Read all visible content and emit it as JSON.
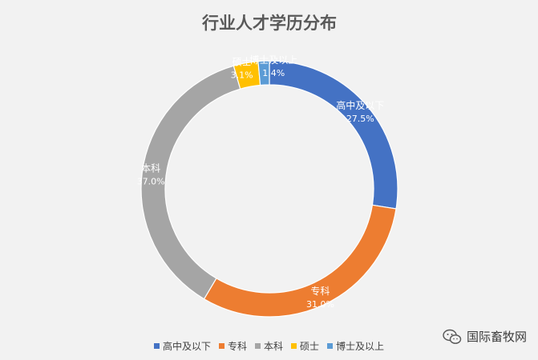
{
  "chart_data": {
    "type": "pie",
    "donut": true,
    "title": "行业人才学历分布",
    "categories": [
      "高中及以下",
      "专科",
      "本科",
      "硕士",
      "博士及以上"
    ],
    "values": [
      27.5,
      31.0,
      37.0,
      3.1,
      1.4
    ],
    "value_labels": [
      "27.5%",
      "31.0%",
      "37.0%",
      "3.1%",
      "1.4%"
    ],
    "colors": [
      "#4472c4",
      "#ed7d31",
      "#a5a5a5",
      "#ffc000",
      "#5b9bd5"
    ],
    "legend_position": "bottom"
  },
  "watermark": {
    "text": "国际畜牧网",
    "icon": "wechat-icon"
  }
}
